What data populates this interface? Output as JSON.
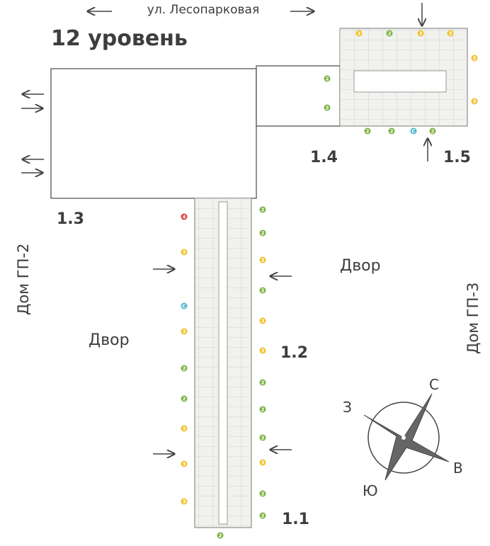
{
  "header": {
    "street": "ул. Лесопарковая",
    "level": "12 уровень"
  },
  "sections": {
    "s13": "1.3",
    "s14": "1.4",
    "s15": "1.5",
    "s12": "1.2",
    "s11": "1.1"
  },
  "yards": [
    "Двор",
    "Двор"
  ],
  "houses": {
    "left": "Дом ГП-2",
    "right": "Дом ГП-3"
  },
  "compass": {
    "north": "С",
    "east": "В",
    "south": "Ю",
    "west": "З"
  },
  "markers": [
    "3",
    "2",
    "3",
    "3",
    "2",
    "2",
    "3",
    "3",
    "2",
    "2",
    "С",
    "2",
    "4",
    "3",
    "С",
    "3",
    "2",
    "2",
    "3",
    "3",
    "3",
    "2",
    "2",
    "3",
    "2",
    "3",
    "3",
    "2",
    "2",
    "2",
    "3",
    "2",
    "2",
    "2"
  ]
}
